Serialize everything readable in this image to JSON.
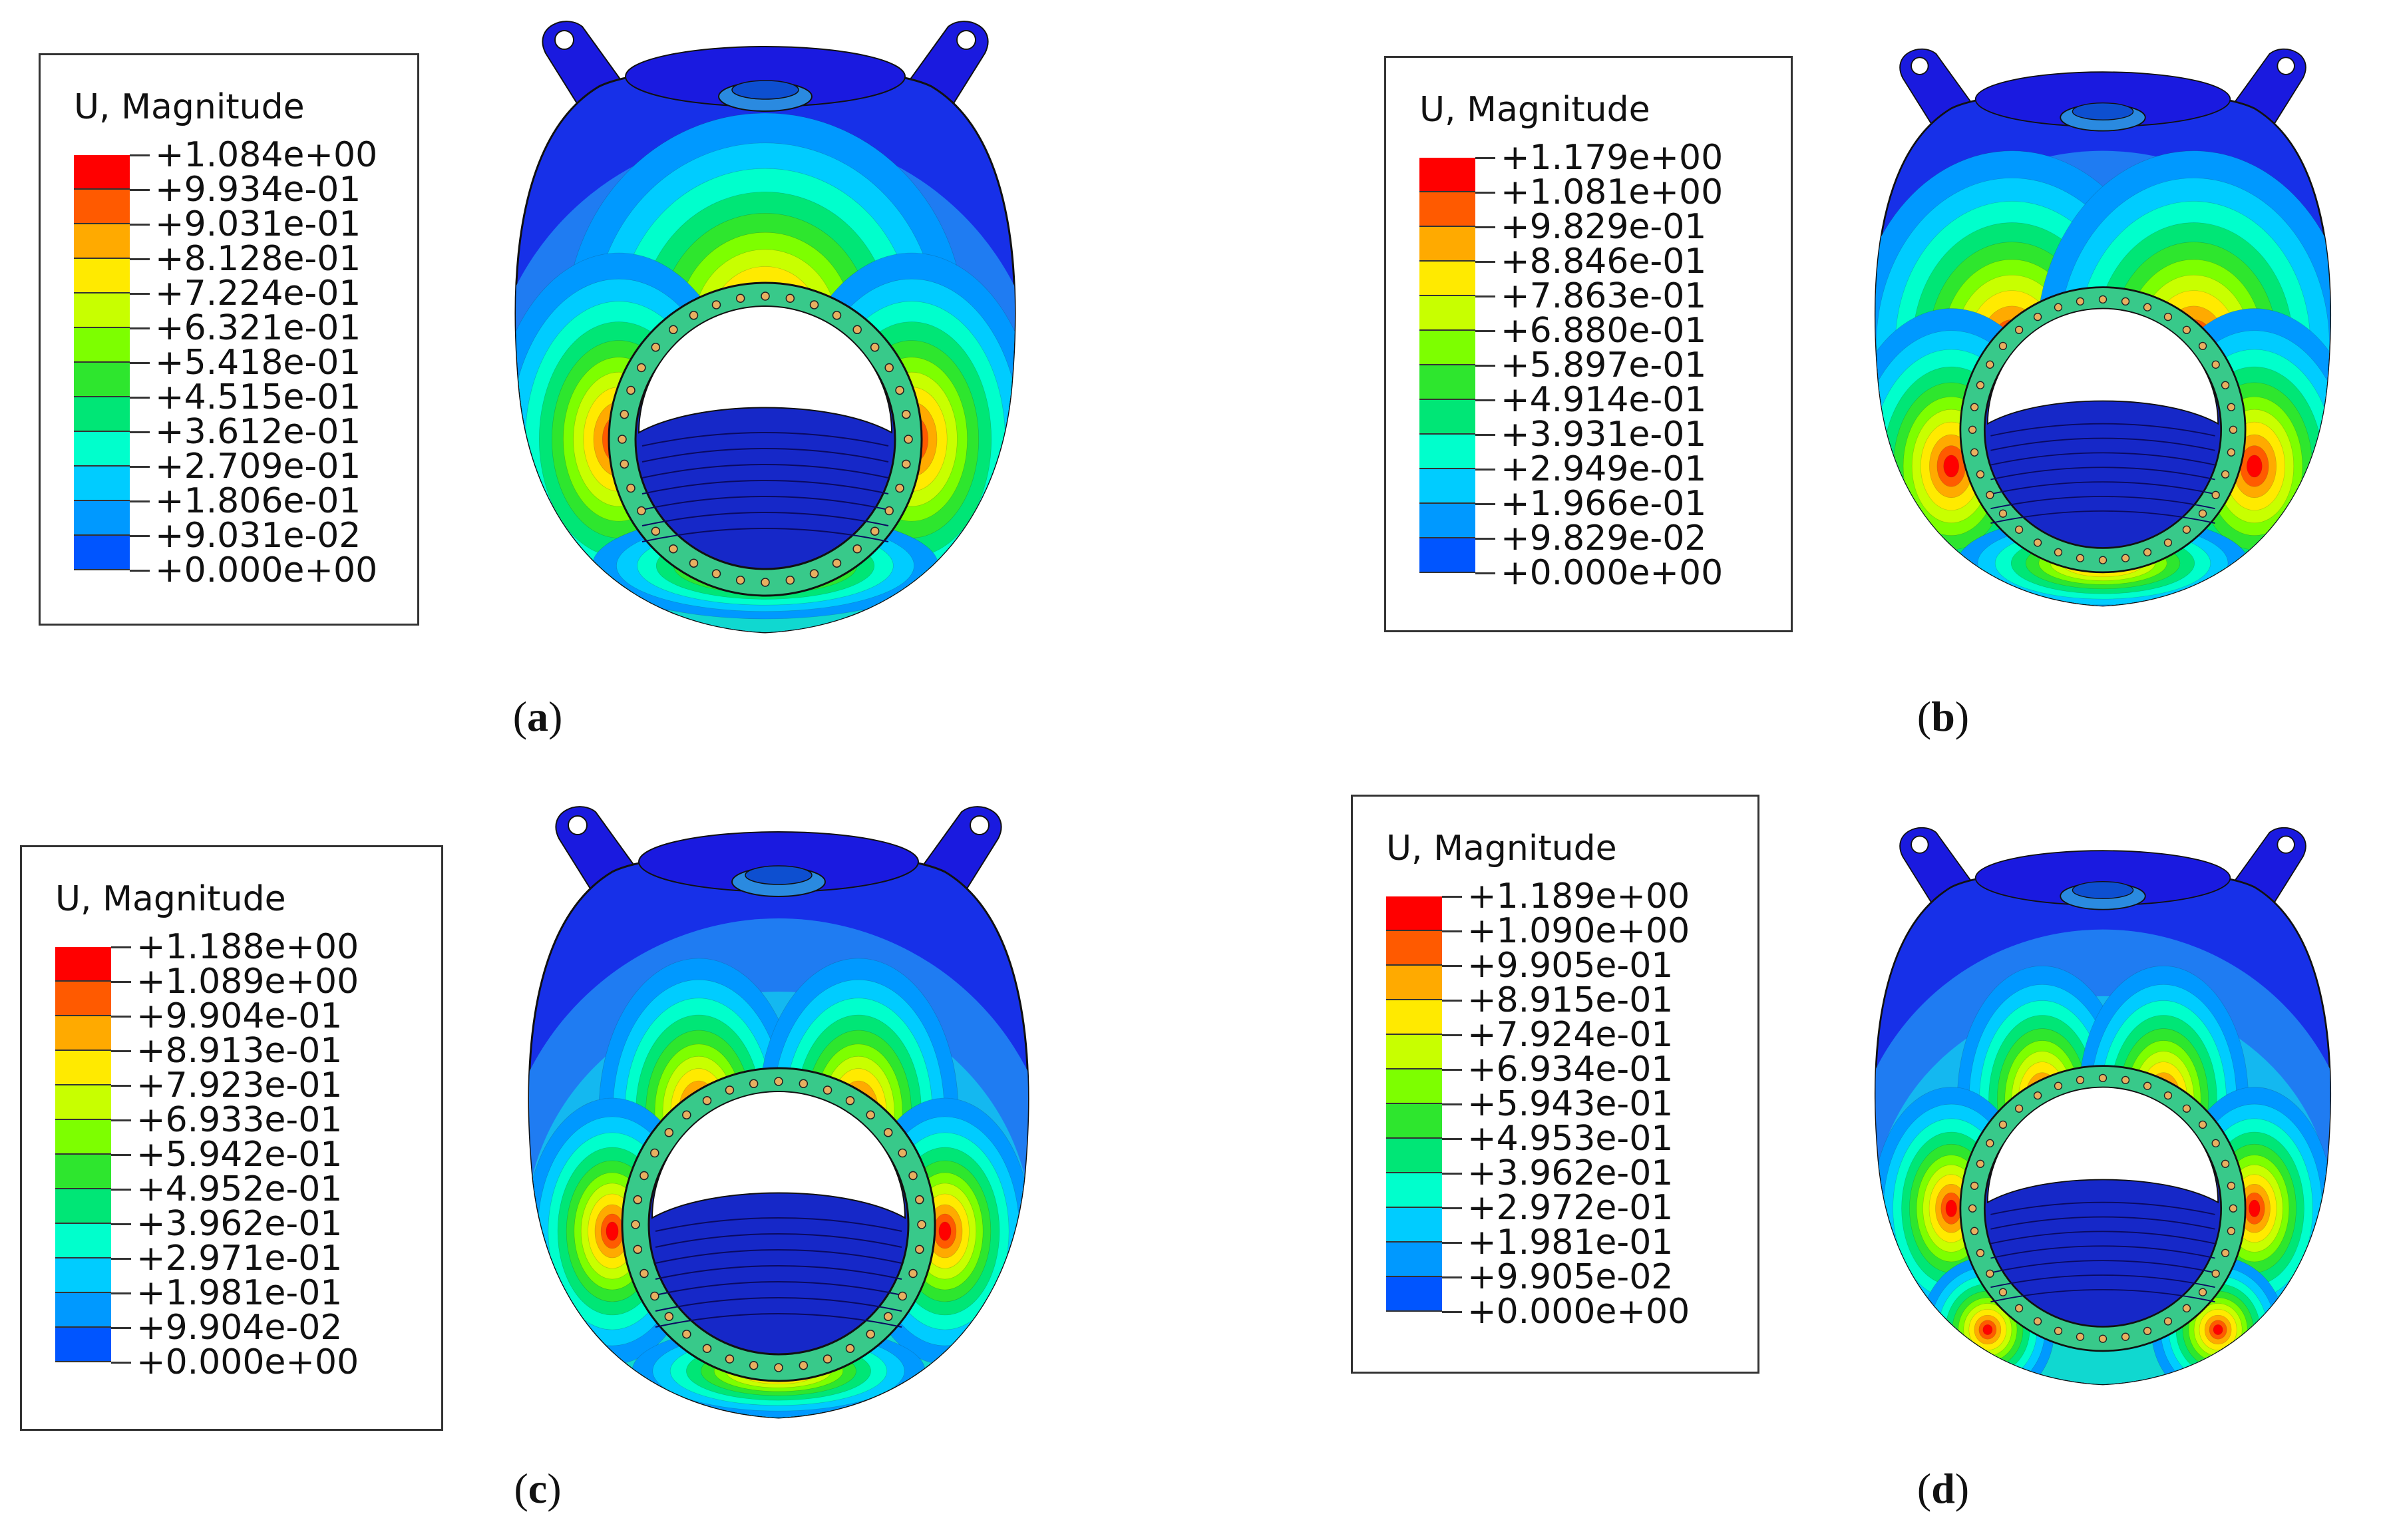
{
  "panels": [
    {
      "id": "a",
      "caption_letter": "a",
      "legend_title": "U, Magnitude",
      "legend_values": [
        "+1.084e+00",
        "+9.934e-01",
        "+9.031e-01",
        "+8.128e-01",
        "+7.224e-01",
        "+6.321e-01",
        "+5.418e-01",
        "+4.515e-01",
        "+3.612e-01",
        "+2.709e-01",
        "+1.806e-01",
        "+9.031e-02",
        "+0.000e+00"
      ],
      "hotspot_pattern": "top-center-and-sides"
    },
    {
      "id": "b",
      "caption_letter": "b",
      "legend_title": "U, Magnitude",
      "legend_values": [
        "+1.179e+00",
        "+1.081e+00",
        "+9.829e-01",
        "+8.846e-01",
        "+7.863e-01",
        "+6.880e-01",
        "+5.897e-01",
        "+4.914e-01",
        "+3.931e-01",
        "+2.949e-01",
        "+1.966e-01",
        "+9.829e-02",
        "+0.000e+00"
      ],
      "hotspot_pattern": "two-upper-lobes-broad"
    },
    {
      "id": "c",
      "caption_letter": "c",
      "legend_title": "U, Magnitude",
      "legend_values": [
        "+1.188e+00",
        "+1.089e+00",
        "+9.904e-01",
        "+8.913e-01",
        "+7.923e-01",
        "+6.933e-01",
        "+5.942e-01",
        "+4.952e-01",
        "+3.962e-01",
        "+2.971e-01",
        "+1.981e-01",
        "+9.904e-02",
        "+0.000e+00"
      ],
      "hotspot_pattern": "five-lobes"
    },
    {
      "id": "d",
      "caption_letter": "d",
      "legend_title": "U, Magnitude",
      "legend_values": [
        "+1.189e+00",
        "+1.090e+00",
        "+9.905e-01",
        "+8.915e-01",
        "+7.924e-01",
        "+6.934e-01",
        "+5.943e-01",
        "+4.953e-01",
        "+3.962e-01",
        "+2.972e-01",
        "+1.981e-01",
        "+9.905e-02",
        "+0.000e+00"
      ],
      "hotspot_pattern": "six-lobes"
    }
  ],
  "colormap": [
    "#ff0000",
    "#ff5a00",
    "#ffaa00",
    "#ffea00",
    "#c8ff00",
    "#7dff00",
    "#2ee62e",
    "#00e676",
    "#00ffcc",
    "#00ccff",
    "#0099ff",
    "#0055ff",
    "#0000ff"
  ]
}
